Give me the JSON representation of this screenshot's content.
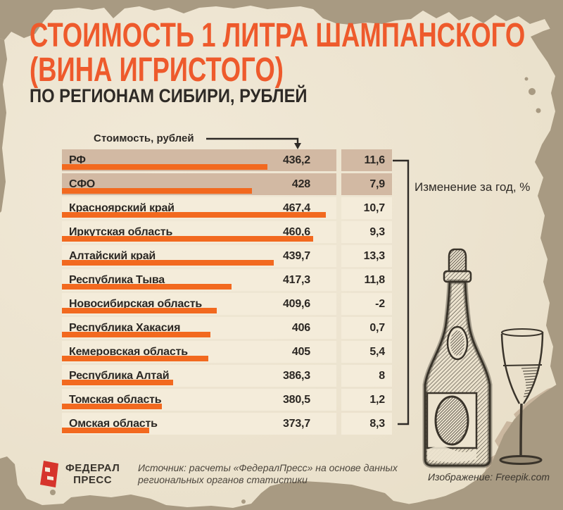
{
  "header": {
    "title_line1": "СТОИМОСТЬ 1 ЛИТРА ШАМПАНСКОГО",
    "title_line2": "(ВИНА ИГРИСТОГО)",
    "subtitle": "ПО РЕГИОНАМ СИБИРИ, РУБЛЕЙ"
  },
  "axis": {
    "price_label": "Стоимость, рублей",
    "change_label": "Изменение за год, %"
  },
  "table": {
    "rows": [
      {
        "region": "РФ",
        "price": "436,2",
        "change": "11,6",
        "value": 436.2,
        "highlight": true
      },
      {
        "region": "СФО",
        "price": "428",
        "change": "7,9",
        "value": 428,
        "highlight": true
      },
      {
        "region": "Красноярский край",
        "price": "467,4",
        "change": "10,7",
        "value": 467.4,
        "highlight": false
      },
      {
        "region": "Иркутская область",
        "price": "460,6",
        "change": "9,3",
        "value": 460.6,
        "highlight": false
      },
      {
        "region": "Алтайский край",
        "price": "439,7",
        "change": "13,3",
        "value": 439.7,
        "highlight": false
      },
      {
        "region": "Республика Тыва",
        "price": "417,3",
        "change": "11,8",
        "value": 417.3,
        "highlight": false
      },
      {
        "region": "Новосибирская область",
        "price": "409,6",
        "change": "-2",
        "value": 409.6,
        "highlight": false
      },
      {
        "region": "Республика Хакасия",
        "price": "406",
        "change": "0,7",
        "value": 406,
        "highlight": false
      },
      {
        "region": "Кемеровская область",
        "price": "405",
        "change": "5,4",
        "value": 405,
        "highlight": false
      },
      {
        "region": "Республика Алтай",
        "price": "386,3",
        "change": "8",
        "value": 386.3,
        "highlight": false
      },
      {
        "region": "Томская область",
        "price": "380,5",
        "change": "1,2",
        "value": 380.5,
        "highlight": false
      },
      {
        "region": "Омская область",
        "price": "373,7",
        "change": "8,3",
        "value": 373.7,
        "highlight": false
      }
    ]
  },
  "chart_data": {
    "type": "bar",
    "orientation": "horizontal",
    "title": "Стоимость 1 литра шампанского (вина игристого) по регионам Сибири, рублей",
    "categories": [
      "РФ",
      "СФО",
      "Красноярский край",
      "Иркутская область",
      "Алтайский край",
      "Республика Тыва",
      "Новосибирская область",
      "Республика Хакасия",
      "Кемеровская область",
      "Республика Алтай",
      "Томская область",
      "Омская область"
    ],
    "series": [
      {
        "name": "Стоимость, рублей",
        "values": [
          436.2,
          428,
          467.4,
          460.6,
          439.7,
          417.3,
          409.6,
          406,
          405,
          386.3,
          380.5,
          373.7
        ]
      },
      {
        "name": "Изменение за год, %",
        "values": [
          11.6,
          7.9,
          10.7,
          9.3,
          13.3,
          11.8,
          -2,
          0.7,
          5.4,
          8,
          1.2,
          8.3
        ]
      }
    ],
    "grid": false,
    "legend_position": "none"
  },
  "footer": {
    "logo_line1": "ФЕДЕРАЛ",
    "logo_line2": "ПРЕСС",
    "source_line1": "Источник: расчеты «ФедералПресс» на основе данных",
    "source_line2": "региональных органов статистики",
    "image_credit": "Изображение: Freepik.com"
  },
  "colors": {
    "accent_orange": "#ee5a2c",
    "bar_orange": "#f2691f",
    "row_highlight": "#d2b9a3",
    "row_light": "#f4ecda",
    "paper": "#ece3cf",
    "torn_paper": "#a89a82",
    "torn_shadow": "#c6b39a",
    "text_dark": "#2b2723",
    "logo_red": "#d6342c"
  }
}
